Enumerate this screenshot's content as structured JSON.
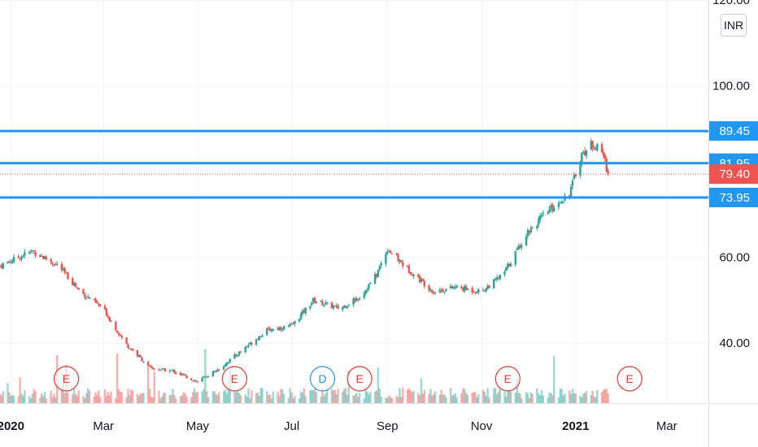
{
  "currency": "INR",
  "colors": {
    "up": "#26a69a",
    "down": "#ef5350",
    "level": "#2196f3",
    "last_price": "#ef5350",
    "event": "#e53935",
    "dividend": "#2196f3",
    "grid": "#f0f3fa",
    "text": "#131722"
  },
  "chart_data": {
    "type": "candlestick",
    "y_axis": {
      "range": [
        26,
        120
      ],
      "ticks": [
        "120.00",
        "100.00",
        "60.00",
        "40.00"
      ],
      "tick_values": [
        120,
        100,
        60,
        40
      ]
    },
    "x_axis": {
      "range": [
        "2019-12-25",
        "2021-03-28"
      ],
      "ticks": [
        {
          "label": "2020",
          "date": "2020-01-01"
        },
        {
          "label": "Mar",
          "date": "2020-03-01"
        },
        {
          "label": "May",
          "date": "2020-05-01"
        },
        {
          "label": "Jul",
          "date": "2020-07-01"
        },
        {
          "label": "Sep",
          "date": "2020-09-01"
        },
        {
          "label": "Nov",
          "date": "2020-11-01"
        },
        {
          "label": "2021",
          "date": "2021-01-01"
        },
        {
          "label": "Mar",
          "date": "2021-03-01"
        }
      ]
    },
    "price_path": [
      [
        "2019-12-25",
        58.0
      ],
      [
        "2020-01-15",
        61.5
      ],
      [
        "2020-02-01",
        58.0
      ],
      [
        "2020-02-15",
        52.0
      ],
      [
        "2020-03-01",
        48.0
      ],
      [
        "2020-03-15",
        40.0
      ],
      [
        "2020-04-01",
        34.0
      ],
      [
        "2020-04-15",
        33.5
      ],
      [
        "2020-05-01",
        31.0
      ],
      [
        "2020-05-15",
        34.0
      ],
      [
        "2020-06-01",
        39.0
      ],
      [
        "2020-06-15",
        43.0
      ],
      [
        "2020-07-01",
        44.0
      ],
      [
        "2020-07-15",
        50.0
      ],
      [
        "2020-08-01",
        48.0
      ],
      [
        "2020-08-15",
        51.0
      ],
      [
        "2020-08-25",
        56.0
      ],
      [
        "2020-09-01",
        62.0
      ],
      [
        "2020-09-15",
        57.0
      ],
      [
        "2020-10-01",
        52.0
      ],
      [
        "2020-10-15",
        53.0
      ],
      [
        "2020-11-01",
        52.0
      ],
      [
        "2020-11-15",
        56.0
      ],
      [
        "2020-12-01",
        66.0
      ],
      [
        "2020-12-15",
        71.0
      ],
      [
        "2020-12-28",
        75.0
      ],
      [
        "2021-01-05",
        84.0
      ],
      [
        "2021-01-12",
        86.5
      ],
      [
        "2021-01-19",
        84.0
      ],
      [
        "2021-01-22",
        79.4
      ]
    ],
    "price_levels": [
      {
        "label": "89.45",
        "value": 89.45
      },
      {
        "label": "81.95",
        "value": 81.95
      },
      {
        "label": "73.95",
        "value": 73.95
      }
    ],
    "last_price": {
      "label": "79.40",
      "value": 79.4
    },
    "events": [
      {
        "label": "E",
        "date": "2020-02-06",
        "kind": "earnings"
      },
      {
        "label": "E",
        "date": "2020-05-25",
        "kind": "earnings"
      },
      {
        "label": "D",
        "date": "2020-07-21",
        "kind": "dividend"
      },
      {
        "label": "E",
        "date": "2020-08-14",
        "kind": "earnings"
      },
      {
        "label": "E",
        "date": "2020-11-18",
        "kind": "earnings"
      },
      {
        "label": "E",
        "date": "2021-02-05",
        "kind": "earnings"
      }
    ]
  }
}
